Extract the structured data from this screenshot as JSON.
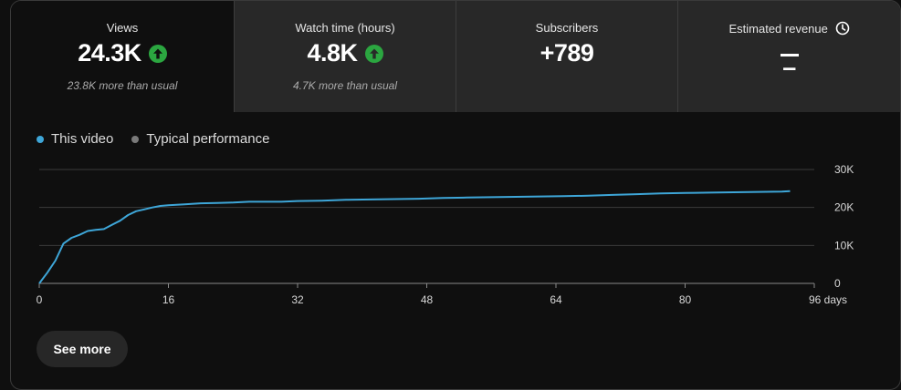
{
  "metrics": [
    {
      "label": "Views",
      "value": "24.3K",
      "sub": "23.8K more than usual",
      "trend_icon": "arrow-up-circle-icon"
    },
    {
      "label": "Watch time (hours)",
      "value": "4.8K",
      "sub": "4.7K more than usual",
      "trend_icon": "arrow-up-circle-icon"
    },
    {
      "label": "Subscribers",
      "value": "+789"
    },
    {
      "label": "Estimated revenue",
      "value": "–",
      "info_icon": "clock-icon"
    }
  ],
  "legend": {
    "this_video": "This video",
    "typical": "Typical performance"
  },
  "colors": {
    "this_video": "#3ea6d8",
    "typical": "#7a7a7a",
    "trend_up": "#2ba640"
  },
  "see_more": "See more",
  "chart_data": {
    "type": "line",
    "xlabel": "days",
    "xlim": [
      0,
      96
    ],
    "ylim": [
      0,
      30000
    ],
    "x_ticks": [
      0,
      16,
      32,
      48,
      64,
      80,
      96
    ],
    "x_tick_labels": [
      "0",
      "16",
      "32",
      "48",
      "64",
      "80",
      "96 days"
    ],
    "y_ticks": [
      0,
      10000,
      20000,
      30000
    ],
    "y_tick_labels": [
      "0",
      "10K",
      "20K",
      "30K"
    ],
    "grid": true,
    "legend_position": "top-left",
    "series": [
      {
        "name": "This video",
        "values": [
          [
            0,
            0
          ],
          [
            1,
            2800
          ],
          [
            2,
            6000
          ],
          [
            3,
            10500
          ],
          [
            4,
            12000
          ],
          [
            5,
            12800
          ],
          [
            6,
            13800
          ],
          [
            7,
            14100
          ],
          [
            8,
            14300
          ],
          [
            9,
            15400
          ],
          [
            10,
            16500
          ],
          [
            11,
            18000
          ],
          [
            12,
            19000
          ],
          [
            13,
            19500
          ],
          [
            14,
            20000
          ],
          [
            15,
            20400
          ],
          [
            16,
            20600
          ],
          [
            18,
            20800
          ],
          [
            20,
            21100
          ],
          [
            22,
            21200
          ],
          [
            24,
            21300
          ],
          [
            26,
            21500
          ],
          [
            28,
            21500
          ],
          [
            30,
            21500
          ],
          [
            32,
            21700
          ],
          [
            35,
            21800
          ],
          [
            38,
            22000
          ],
          [
            41,
            22100
          ],
          [
            44,
            22200
          ],
          [
            47,
            22300
          ],
          [
            50,
            22500
          ],
          [
            53,
            22600
          ],
          [
            56,
            22700
          ],
          [
            59,
            22800
          ],
          [
            62,
            22900
          ],
          [
            65,
            23000
          ],
          [
            68,
            23100
          ],
          [
            71,
            23300
          ],
          [
            74,
            23500
          ],
          [
            77,
            23700
          ],
          [
            80,
            23800
          ],
          [
            83,
            23900
          ],
          [
            86,
            24000
          ],
          [
            89,
            24100
          ],
          [
            92,
            24200
          ],
          [
            93,
            24300
          ]
        ]
      }
    ]
  }
}
